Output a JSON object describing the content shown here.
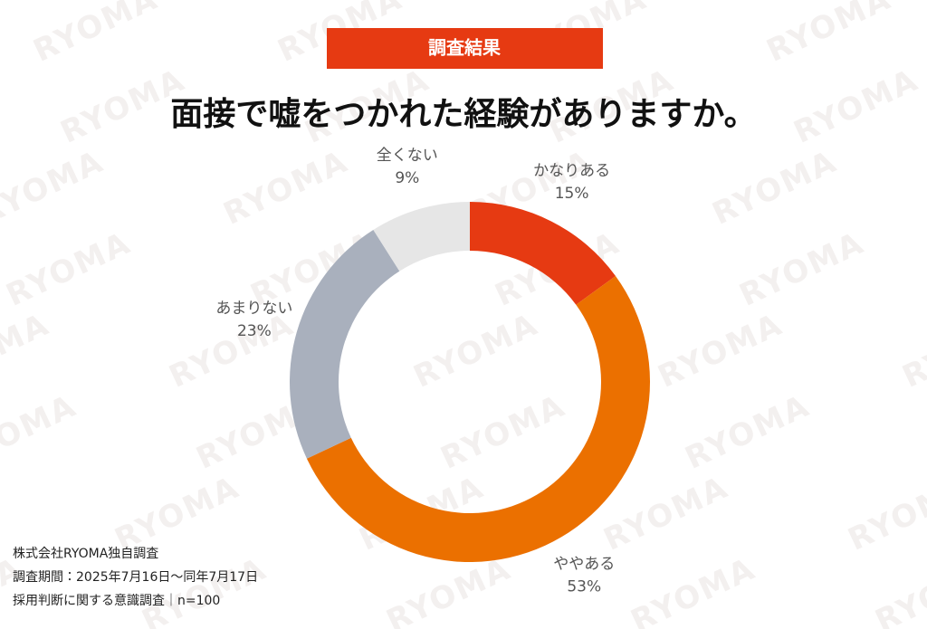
{
  "badge": "調査結果",
  "watermark": "RYOMA",
  "footnote": [
    "株式会社RYOMA独自調査",
    "調査期間：2025年7月16日〜同年7月17日",
    "採用判断に関する意識調査｜n=100"
  ],
  "chart_data": {
    "type": "donut",
    "title": "面接で嘘をつかれた経験がありますか。",
    "categories": [
      "かなりある",
      "ややある",
      "あまりない",
      "全くない"
    ],
    "values": [
      15,
      53,
      23,
      9
    ],
    "value_labels": [
      "15%",
      "53%",
      "23%",
      "9%"
    ],
    "colors": [
      "#e63a12",
      "#eb7000",
      "#a9b0bd",
      "#e6e6e6"
    ]
  }
}
